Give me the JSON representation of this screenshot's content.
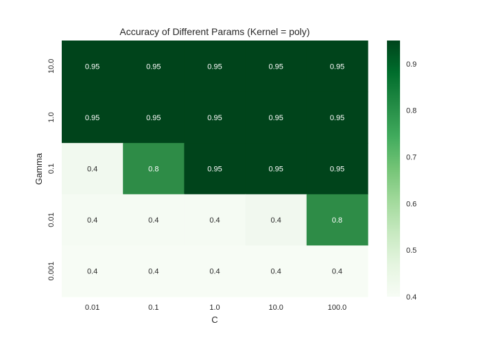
{
  "chart_data": {
    "type": "heatmap",
    "title": "Accuracy of Different Params (Kernel = poly)",
    "xlabel": "C",
    "ylabel": "Gamma",
    "x_categories": [
      "0.01",
      "0.1",
      "1.0",
      "10.0",
      "100.0"
    ],
    "y_categories": [
      "10.0",
      "1.0",
      "0.1",
      "0.01",
      "0.001"
    ],
    "values": [
      [
        0.95,
        0.95,
        0.95,
        0.95,
        0.95
      ],
      [
        0.95,
        0.95,
        0.95,
        0.95,
        0.95
      ],
      [
        0.4,
        0.8,
        0.95,
        0.95,
        0.95
      ],
      [
        0.4,
        0.4,
        0.4,
        0.4,
        0.8
      ],
      [
        0.4,
        0.4,
        0.4,
        0.4,
        0.4
      ]
    ],
    "cell_labels": [
      [
        "0.95",
        "0.95",
        "0.95",
        "0.95",
        "0.95"
      ],
      [
        "0.95",
        "0.95",
        "0.95",
        "0.95",
        "0.95"
      ],
      [
        "0.4",
        "0.8",
        "0.95",
        "0.95",
        "0.95"
      ],
      [
        "0.4",
        "0.4",
        "0.4",
        "0.4",
        "0.8"
      ],
      [
        "0.4",
        "0.4",
        "0.4",
        "0.4",
        "0.4"
      ]
    ],
    "cell_colors": [
      [
        "#00441b",
        "#00441b",
        "#00441b",
        "#00441b",
        "#00441b"
      ],
      [
        "#00441b",
        "#00441b",
        "#00441b",
        "#00441b",
        "#00441b"
      ],
      [
        "#f1f9ef",
        "#2e8c47",
        "#00441b",
        "#00441b",
        "#00441b"
      ],
      [
        "#f5fbf3",
        "#f5fbf3",
        "#f5fbf3",
        "#f1f8ef",
        "#2e8c47"
      ],
      [
        "#f7fcf5",
        "#f7fcf5",
        "#f7fcf5",
        "#f7fcf5",
        "#f7fcf5"
      ]
    ],
    "colormap": "Greens",
    "colorbar": {
      "min": 0.4,
      "max": 0.95,
      "ticks": [
        0.4,
        0.5,
        0.6,
        0.7,
        0.8,
        0.9
      ],
      "tick_labels": [
        "0.4",
        "0.5",
        "0.6",
        "0.7",
        "0.8",
        "0.9"
      ]
    },
    "grid": false
  }
}
